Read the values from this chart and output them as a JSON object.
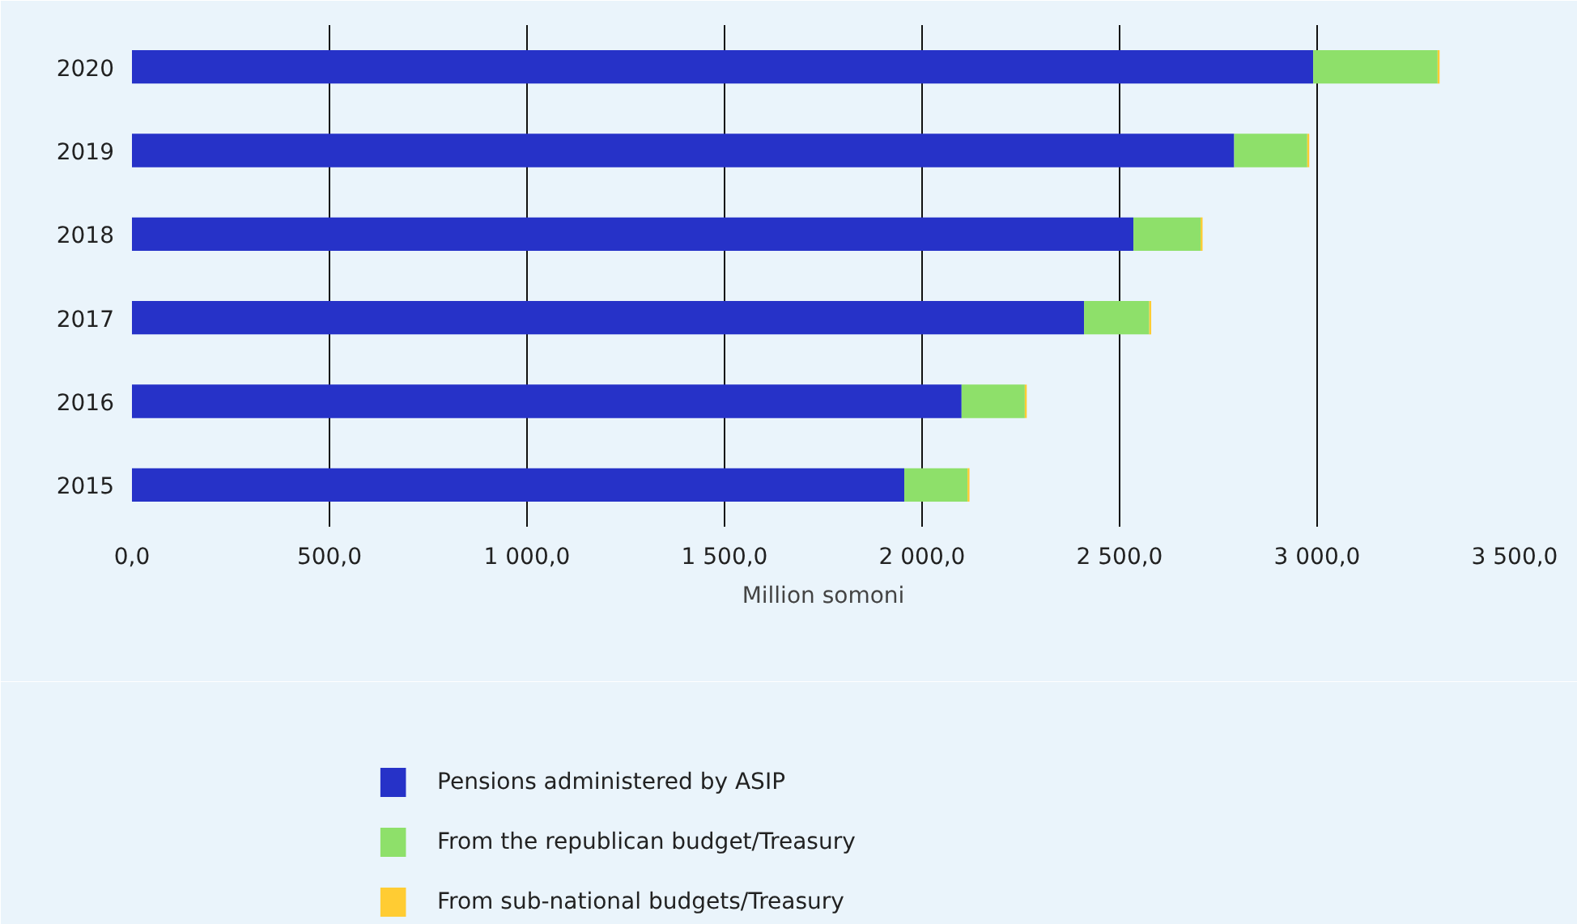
{
  "chart_data": {
    "type": "bar",
    "orientation": "horizontal",
    "stacked": true,
    "xlabel": "Million somoni",
    "categories": [
      "2020",
      "2019",
      "2018",
      "2017",
      "2016",
      "2015"
    ],
    "series": [
      {
        "name": "Pensions administered by ASIP",
        "color": "#2632c8",
        "values": [
          2990,
          2790,
          2535,
          2410,
          2100,
          1955
        ]
      },
      {
        "name": "From the republican budget/Treasury",
        "color": "#8ee06a",
        "values": [
          315,
          185,
          170,
          165,
          160,
          160
        ]
      },
      {
        "name": "From sub-national budgets/Treasury",
        "color": "#ffcc33",
        "values": [
          5,
          5,
          5,
          5,
          5,
          5
        ]
      }
    ],
    "xlim": [
      0,
      3500
    ],
    "xticks": [
      {
        "value": 0,
        "label": "0,0"
      },
      {
        "value": 500,
        "label": "500,0"
      },
      {
        "value": 1000,
        "label": "1 000,0"
      },
      {
        "value": 1500,
        "label": "1 500,0"
      },
      {
        "value": 2000,
        "label": "2 000,0"
      },
      {
        "value": 2500,
        "label": "2 500,0"
      },
      {
        "value": 3000,
        "label": "3 000,0"
      },
      {
        "value": 3500,
        "label": "3 500,0"
      }
    ],
    "grid": "x",
    "legend": "bottom"
  }
}
